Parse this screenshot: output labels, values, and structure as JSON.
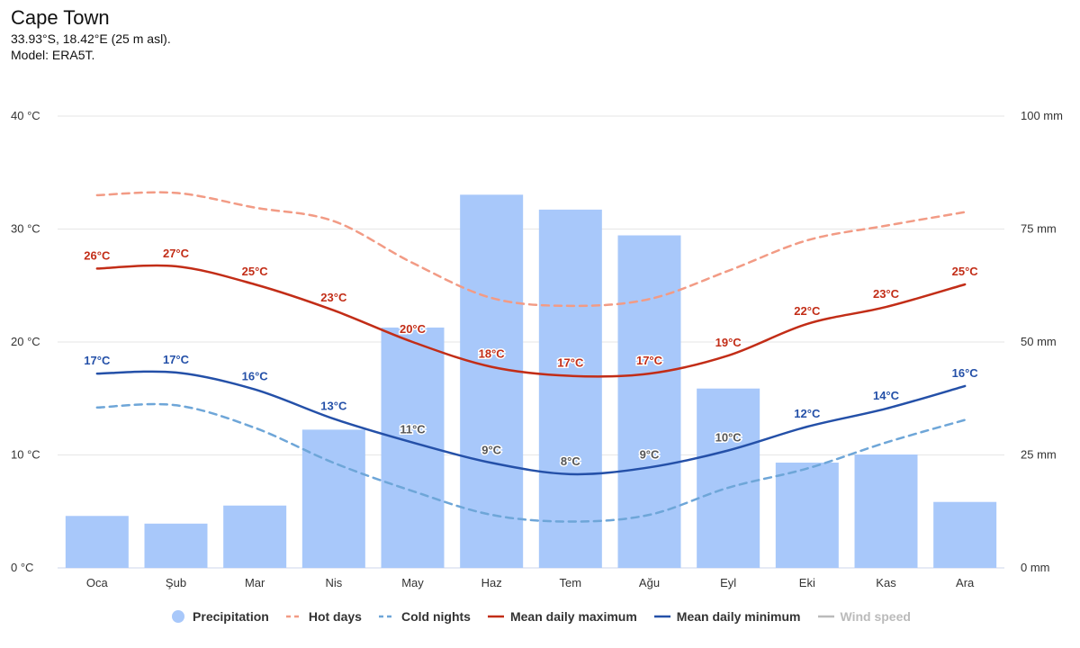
{
  "header": {
    "title": "Cape Town",
    "coords": "33.93°S, 18.42°E (25 m asl).",
    "model": "Model: ERA5T."
  },
  "chart_data": {
    "type": "bar",
    "categories": [
      "Oca",
      "Şub",
      "Mar",
      "Nis",
      "May",
      "Haz",
      "Tem",
      "Ağu",
      "Eyl",
      "Eki",
      "Kas",
      "Ara"
    ],
    "left_axis": {
      "ticks": [
        "0 °C",
        "10 °C",
        "20 °C",
        "30 °C",
        "40 °C"
      ],
      "range": [
        0,
        40
      ]
    },
    "right_axis": {
      "ticks": [
        "0 mm",
        "25 mm",
        "50 mm",
        "75 mm",
        "100 mm"
      ],
      "range": [
        0,
        100
      ]
    },
    "grid": true,
    "legend_position": "bottom",
    "series": [
      {
        "name": "Precipitation",
        "type": "bar",
        "axis": "right",
        "color": "#a8c8fa",
        "values": [
          11.5,
          9.8,
          13.8,
          30.6,
          53.2,
          82.6,
          79.3,
          73.6,
          39.7,
          23.3,
          25.1,
          14.6
        ]
      },
      {
        "name": "Hot days",
        "type": "line",
        "dashed": true,
        "axis": "left",
        "color": "#f29b85",
        "values": [
          33.0,
          33.2,
          31.9,
          30.7,
          27.0,
          23.9,
          23.2,
          23.8,
          26.3,
          29.0,
          30.3,
          31.5
        ]
      },
      {
        "name": "Cold nights",
        "type": "line",
        "dashed": true,
        "axis": "left",
        "color": "#6ea6d8",
        "values": [
          14.2,
          14.4,
          12.4,
          9.3,
          6.8,
          4.7,
          4.1,
          4.7,
          7.1,
          8.8,
          11.1,
          13.1
        ]
      },
      {
        "name": "Mean daily maximum",
        "type": "line",
        "axis": "left",
        "color": "#c22d17",
        "values": [
          26.5,
          26.7,
          25.1,
          22.8,
          20.0,
          17.8,
          17.0,
          17.2,
          18.8,
          21.6,
          23.1,
          25.1
        ],
        "labels": [
          "26°C",
          "27°C",
          "25°C",
          "23°C",
          "20°C",
          "18°C",
          "17°C",
          "17°C",
          "19°C",
          "22°C",
          "23°C",
          "25°C"
        ]
      },
      {
        "name": "Mean daily minimum",
        "type": "line",
        "axis": "left",
        "color": "#2450a8",
        "values": [
          17.2,
          17.3,
          15.8,
          13.2,
          11.1,
          9.3,
          8.3,
          8.9,
          10.4,
          12.5,
          14.1,
          16.1
        ],
        "labels": [
          "17°C",
          "17°C",
          "16°C",
          "13°C",
          "11°C",
          "9°C",
          "8°C",
          "9°C",
          "10°C",
          "12°C",
          "14°C",
          "16°C"
        ]
      }
    ],
    "legend": [
      {
        "name": "Precipitation",
        "symbol": "dot",
        "color": "#a8c8fa",
        "enabled": true
      },
      {
        "name": "Hot days",
        "symbol": "dash",
        "color": "#f29b85",
        "enabled": true
      },
      {
        "name": "Cold nights",
        "symbol": "dash",
        "color": "#6ea6d8",
        "enabled": true
      },
      {
        "name": "Mean daily maximum",
        "symbol": "line",
        "color": "#c22d17",
        "enabled": true
      },
      {
        "name": "Mean daily minimum",
        "symbol": "line",
        "color": "#2450a8",
        "enabled": true
      },
      {
        "name": "Wind speed",
        "symbol": "line",
        "color": "#bbbbbb",
        "enabled": false
      }
    ]
  }
}
